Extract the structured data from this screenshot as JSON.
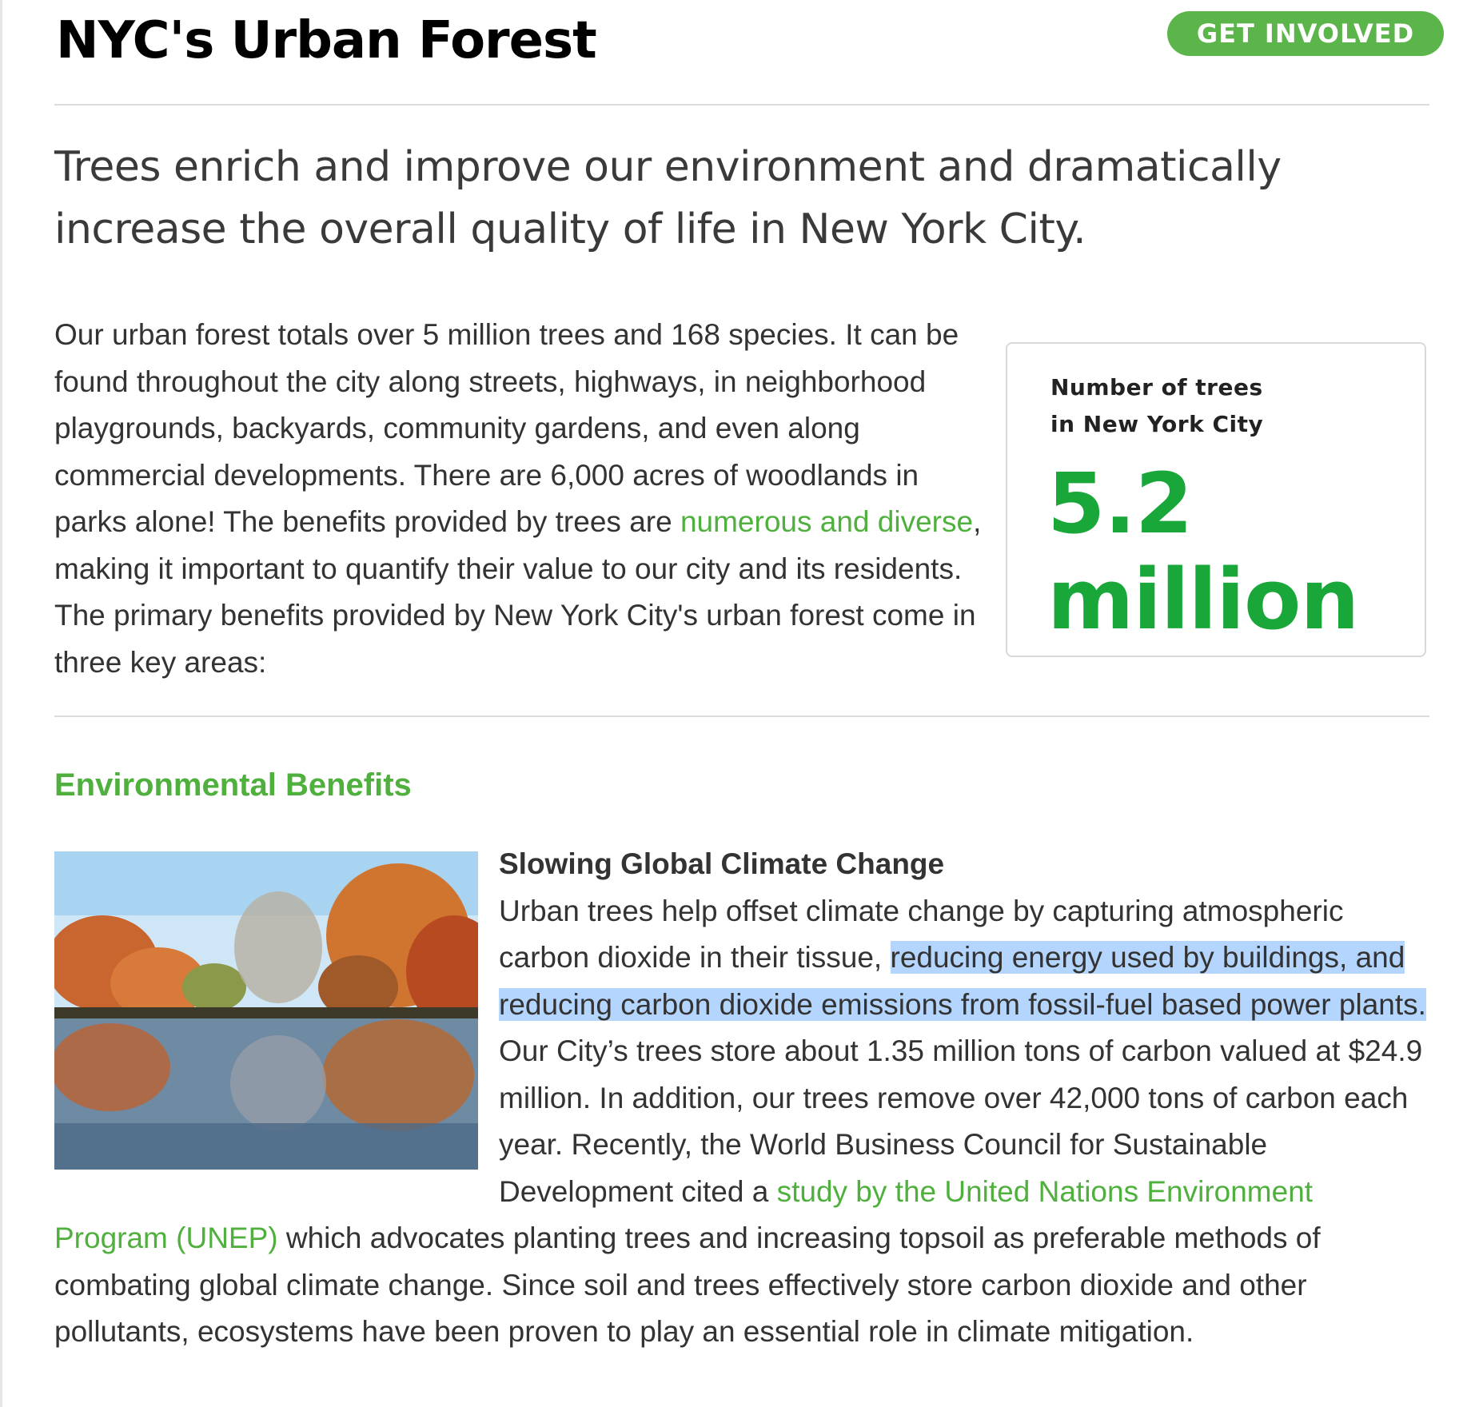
{
  "header": {
    "title": "NYC's Urban Forest",
    "cta_label": "GET INVOLVED"
  },
  "lead": "Trees enrich and improve our environment and dramatically increase the overall quality of life in New York City.",
  "intro": {
    "text_before_link": "Our urban forest totals over 5 million trees and 168 species. It can be found throughout the city along streets, highways, in neighborhood playgrounds, backyards, community gardens, and even along commercial developments. There are 6,000 acres of woodlands in parks alone! The benefits provided by trees are ",
    "link_text": "numerous and diverse",
    "text_after_link": ", making it important to quantify their value to our city and its residents. The primary benefits provided by New York City's urban forest come in three key areas:"
  },
  "stat_box": {
    "caption_line1": "Number of trees",
    "caption_line2": "in New York City",
    "value_line1": "5.2",
    "value_line2": "million"
  },
  "environmental": {
    "heading": "Environmental Benefits",
    "subheading": "Slowing Global Climate Change",
    "text_1": "Urban trees help offset climate change by capturing atmospheric carbon dioxide in their tissue, ",
    "selected_text": "reducing energy used by buildings, and reducing carbon dioxide emissions from fossil-fuel based power plants.",
    "text_2": " Our City’s trees store about 1.35 million tons of carbon valued at $24.9 million. In addition, our trees remove over 42,000 tons of carbon each year. Recently, the World Business Council for Sustainable Development cited a ",
    "link_text": "study by the United Nations Environment Program (UNEP)",
    "text_3": " which advocates planting trees and increasing topsoil as preferable methods of combating global climate change. Since soil and trees effectively store carbon dioxide and other pollutants, ecosystems have been proven to play an essential role in climate mitigation."
  },
  "colors": {
    "accent_green": "#4fb03e",
    "stat_green": "#1aa73a",
    "selection_blue": "#b4d5fe"
  }
}
